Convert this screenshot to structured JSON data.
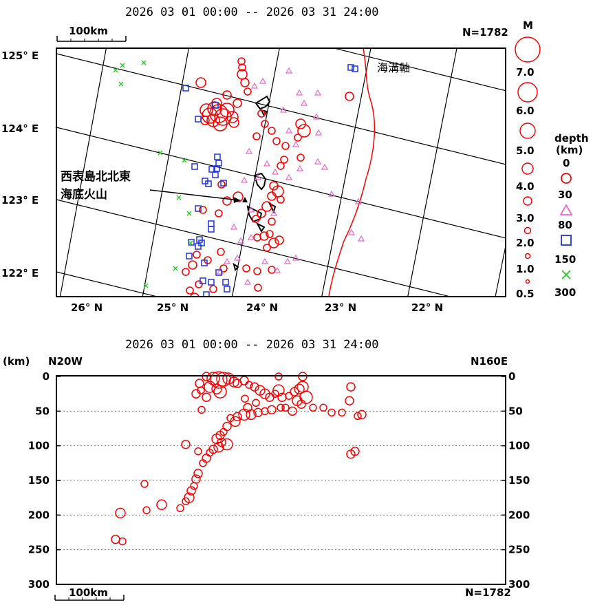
{
  "colors": {
    "shallow": "#ff0000",
    "mid": "#ee66cc",
    "deep": "#1a33dd",
    "very_deep": "#22cc22",
    "island": "#000000",
    "trench": "#ff0000"
  },
  "chart_data": [
    {
      "type": "scatter",
      "panel": "epicenter-map",
      "title": "2026 03 01 00:00 -- 2026 03 31 24:00",
      "scale_label": "100km",
      "count_label": "N=1782",
      "lat_ticks": [
        "125° E",
        "124° E",
        "123° E",
        "122° E"
      ],
      "lon_ticks": [
        "26° N",
        "25° N",
        "24° N",
        "23° N",
        "22° N"
      ],
      "annotations": {
        "trench": "海溝軸",
        "volcano_line1": "西表島北北東",
        "volcano_line2": "海底火山"
      },
      "legend": {
        "magnitude_title": "M",
        "magnitudes": [
          "7.0",
          "6.0",
          "5.0",
          "4.0",
          "3.0",
          "2.0",
          "1.0",
          "0.5"
        ],
        "depth_title_line1": "depth",
        "depth_title_line2": "(km)",
        "depths": [
          "0",
          "30",
          "80",
          "150",
          "300"
        ]
      },
      "series": [
        {
          "class": "shallow",
          "points": [
            [
              292,
              120,
              7
            ],
            [
              300,
              160,
              9
            ],
            [
              305,
              168,
              11
            ],
            [
              312,
              158,
              10
            ],
            [
              318,
              165,
              13
            ],
            [
              324,
              170,
              12
            ],
            [
              330,
              160,
              10
            ],
            [
              338,
              170,
              8
            ],
            [
              310,
              175,
              9
            ],
            [
              320,
              180,
              10
            ],
            [
              340,
              178,
              7
            ],
            [
              298,
              175,
              6
            ],
            [
              315,
              150,
              7
            ],
            [
              345,
              150,
              6
            ],
            [
              352,
              108,
              7
            ],
            [
              356,
              120,
              6
            ],
            [
              360,
              133,
              5
            ],
            [
              330,
              138,
              6
            ],
            [
              380,
              165,
              5
            ],
            [
              385,
              180,
              5
            ],
            [
              373,
              198,
              5
            ],
            [
              395,
              190,
              5
            ],
            [
              402,
              205,
              5
            ],
            [
              415,
              212,
              5
            ],
            [
              442,
              190,
              9
            ],
            [
              437,
              180,
              7
            ],
            [
              433,
              200,
              5
            ],
            [
              413,
              232,
              5
            ],
            [
              408,
              241,
              5
            ],
            [
              437,
              229,
              5
            ],
            [
              398,
              270,
              6
            ],
            [
              404,
              278,
              8
            ],
            [
              395,
              285,
              6
            ],
            [
              408,
              290,
              5
            ],
            [
              388,
              300,
              7
            ],
            [
              380,
              310,
              6
            ],
            [
              372,
              318,
              5
            ],
            [
              395,
              322,
              5
            ],
            [
              406,
              349,
              6
            ],
            [
              398,
              353,
              7
            ],
            [
              392,
              340,
              5
            ],
            [
              384,
              343,
              6
            ],
            [
              374,
              345,
              5
            ],
            [
              346,
              286,
              7
            ],
            [
              330,
              292,
              6
            ],
            [
              322,
              268,
              5
            ],
            [
              318,
              310,
              5
            ],
            [
              295,
              305,
              5
            ],
            [
              286,
              370,
              5
            ],
            [
              280,
              385,
              6
            ],
            [
              270,
              395,
              5
            ],
            [
              289,
              413,
              5
            ],
            [
              276,
              422,
              5
            ],
            [
              302,
              378,
              5
            ],
            [
              321,
              366,
              5
            ],
            [
              325,
              390,
              5
            ],
            [
              358,
              390,
              5
            ],
            [
              374,
              394,
              5
            ],
            [
              375,
              418,
              5
            ],
            [
              395,
              392,
              5
            ],
            [
              388,
              360,
              5
            ],
            [
              310,
              420,
              5
            ],
            [
              283,
              432,
              6
            ],
            [
              508,
              140,
              6
            ],
            [
              351,
              89,
              5
            ],
            [
              352,
              98,
              5
            ]
          ]
        },
        {
          "class": "mid",
          "points": [
            [
              420,
              103
            ],
            [
              435,
              135
            ],
            [
              462,
              135
            ],
            [
              442,
              150
            ],
            [
              460,
              170
            ],
            [
              412,
              160
            ],
            [
              420,
              190
            ],
            [
              463,
              193
            ],
            [
              430,
              210
            ],
            [
              436,
              245
            ],
            [
              420,
              258
            ],
            [
              400,
              250
            ],
            [
              375,
              258
            ],
            [
              388,
              238
            ],
            [
              365,
              305
            ],
            [
              365,
              345
            ],
            [
              350,
              350
            ],
            [
              345,
              375
            ],
            [
              330,
              380
            ],
            [
              320,
              395
            ],
            [
              403,
              393
            ],
            [
              418,
              380
            ],
            [
              430,
              375
            ],
            [
              462,
              235
            ],
            [
              472,
              243
            ],
            [
              482,
              282
            ],
            [
              521,
              293
            ],
            [
              511,
              338
            ],
            [
              525,
              347
            ],
            [
              370,
              125
            ],
            [
              382,
              118
            ],
            [
              362,
              220
            ],
            [
              355,
              262
            ],
            [
              398,
              310
            ],
            [
              385,
              380
            ],
            [
              340,
              330
            ],
            [
              360,
              410
            ]
          ]
        },
        {
          "class": "deep",
          "points": [
            [
              270,
              128
            ],
            [
              510,
              98
            ],
            [
              516,
              100
            ],
            [
              313,
              153
            ],
            [
              288,
              173
            ],
            [
              316,
              228
            ],
            [
              318,
              237
            ],
            [
              315,
              245
            ],
            [
              313,
              254
            ],
            [
              303,
              267
            ],
            [
              298,
              263
            ],
            [
              325,
              266
            ],
            [
              283,
              242
            ],
            [
              308,
              246
            ],
            [
              288,
              303
            ],
            [
              307,
              325
            ],
            [
              307,
              333
            ],
            [
              290,
              348
            ],
            [
              293,
              353
            ],
            [
              288,
              358
            ],
            [
              278,
              352
            ],
            [
              275,
              372
            ],
            [
              297,
              382
            ],
            [
              318,
              396
            ],
            [
              295,
              408
            ],
            [
              307,
              410
            ],
            [
              328,
              410
            ],
            [
              330,
              420
            ],
            [
              300,
              428
            ]
          ]
        },
        {
          "class": "very_deep",
          "points": [
            [
              168,
              102
            ],
            [
              178,
              95
            ],
            [
              209,
              91
            ],
            [
              176,
              122
            ],
            [
              233,
              222
            ],
            [
              268,
              233
            ],
            [
              260,
              287
            ],
            [
              275,
              310
            ],
            [
              212,
              415
            ],
            [
              255,
              390
            ],
            [
              277,
              353
            ]
          ]
        }
      ]
    },
    {
      "type": "scatter",
      "panel": "depth-cross-section",
      "title": "2026 03 01 00:00 -- 2026 03 31 24:00",
      "ylabel": "(km)",
      "left_label": "N20W",
      "right_label": "N160E",
      "scale_label": "100km",
      "count_label": "N=1782",
      "y_ticks": [
        "0",
        "50",
        "100",
        "150",
        "200",
        "250",
        "300"
      ],
      "ylim": [
        0,
        300
      ],
      "points_km": [
        [
          300,
          0,
          6
        ],
        [
          310,
          3,
          9
        ],
        [
          318,
          5,
          12
        ],
        [
          325,
          4,
          10
        ],
        [
          332,
          3,
          8
        ],
        [
          340,
          8,
          7
        ],
        [
          290,
          10,
          6
        ],
        [
          305,
          15,
          8
        ],
        [
          315,
          18,
          7
        ],
        [
          320,
          22,
          9
        ],
        [
          300,
          30,
          6
        ],
        [
          292,
          20,
          5
        ],
        [
          285,
          25,
          6
        ],
        [
          345,
          10,
          6
        ],
        [
          355,
          6,
          6
        ],
        [
          362,
          12,
          5
        ],
        [
          370,
          15,
          6
        ],
        [
          378,
          20,
          7
        ],
        [
          385,
          25,
          7
        ],
        [
          392,
          30,
          6
        ],
        [
          400,
          25,
          5
        ],
        [
          405,
          20,
          8
        ],
        [
          410,
          30,
          6
        ],
        [
          420,
          28,
          5
        ],
        [
          428,
          22,
          6
        ],
        [
          435,
          18,
          7
        ],
        [
          440,
          15,
          8
        ],
        [
          445,
          30,
          9
        ],
        [
          438,
          40,
          6
        ],
        [
          432,
          35,
          7
        ],
        [
          425,
          50,
          6
        ],
        [
          415,
          45,
          5
        ],
        [
          405,
          0,
          5
        ],
        [
          440,
          0,
          6
        ],
        [
          408,
          45,
          5
        ],
        [
          395,
          48,
          6
        ],
        [
          385,
          50,
          5
        ],
        [
          375,
          52,
          6
        ],
        [
          365,
          55,
          7
        ],
        [
          355,
          55,
          8
        ],
        [
          345,
          58,
          6
        ],
        [
          335,
          60,
          5
        ],
        [
          342,
          65,
          7
        ],
        [
          330,
          72,
          6
        ],
        [
          325,
          80,
          5
        ],
        [
          320,
          85,
          6
        ],
        [
          315,
          90,
          7
        ],
        [
          322,
          95,
          6
        ],
        [
          330,
          98,
          8
        ],
        [
          318,
          102,
          7
        ],
        [
          310,
          105,
          6
        ],
        [
          305,
          110,
          5
        ],
        [
          300,
          118,
          6
        ],
        [
          295,
          125,
          5
        ],
        [
          288,
          140,
          6
        ],
        [
          285,
          148,
          6
        ],
        [
          282,
          158,
          5
        ],
        [
          278,
          165,
          6
        ],
        [
          275,
          175,
          7
        ],
        [
          270,
          180,
          5
        ],
        [
          262,
          190,
          5
        ],
        [
          235,
          185,
          7
        ],
        [
          213,
          193,
          5
        ],
        [
          210,
          155,
          5
        ],
        [
          175,
          197,
          7
        ],
        [
          168,
          235,
          6
        ],
        [
          178,
          238,
          5
        ],
        [
          293,
          48,
          5
        ],
        [
          270,
          98,
          6
        ],
        [
          288,
          108,
          5
        ],
        [
          455,
          45,
          5
        ],
        [
          470,
          45,
          5
        ],
        [
          482,
          52,
          5
        ],
        [
          497,
          52,
          5
        ],
        [
          508,
          35,
          6
        ],
        [
          510,
          15,
          6
        ],
        [
          526,
          55,
          6
        ],
        [
          520,
          57,
          5
        ],
        [
          516,
          108,
          6
        ],
        [
          510,
          112,
          6
        ],
        [
          356,
          32,
          5
        ],
        [
          372,
          38,
          5
        ],
        [
          360,
          45,
          6
        ]
      ]
    }
  ]
}
